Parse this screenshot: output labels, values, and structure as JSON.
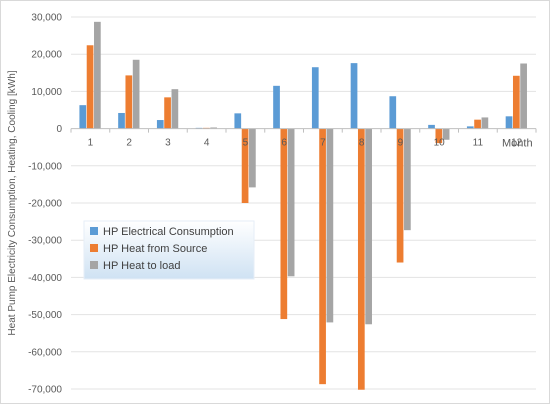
{
  "chart_data": {
    "type": "bar",
    "title": "",
    "xlabel": "Month",
    "ylabel": "Heat Pump Electricity Consumption, Heating, Cooling [kWh]",
    "categories": [
      "1",
      "2",
      "3",
      "4",
      "5",
      "6",
      "7",
      "8",
      "9",
      "10",
      "11",
      "12"
    ],
    "y_ticks": [
      "30,000",
      "20,000",
      "10,000",
      "0",
      "-10,000",
      "-20,000",
      "-30,000",
      "-40,000",
      "-50,000",
      "-60,000",
      "-70,000"
    ],
    "y_tick_values": [
      30000,
      20000,
      10000,
      0,
      -10000,
      -20000,
      -30000,
      -40000,
      -50000,
      -60000,
      -70000
    ],
    "ylim": [
      -70000,
      30000
    ],
    "grid": true,
    "legend_position": "left-middle",
    "series": [
      {
        "name": "HP Electrical Consumption",
        "color": "#5B9BD5",
        "values": [
          6300,
          4200,
          2300,
          200,
          4100,
          11500,
          16500,
          17600,
          8700,
          1000,
          600,
          3300
        ]
      },
      {
        "name": "HP Heat from Source",
        "color": "#ED7D31",
        "values": [
          22400,
          14300,
          8400,
          200,
          -20000,
          -51200,
          -68700,
          -70200,
          -36000,
          -3900,
          2400,
          14200
        ]
      },
      {
        "name": "HP Heat to load",
        "color": "#A5A5A5",
        "values": [
          28700,
          18500,
          10600,
          300,
          -15800,
          -39700,
          -52100,
          -52600,
          -27300,
          -3000,
          3000,
          17500
        ]
      }
    ]
  }
}
